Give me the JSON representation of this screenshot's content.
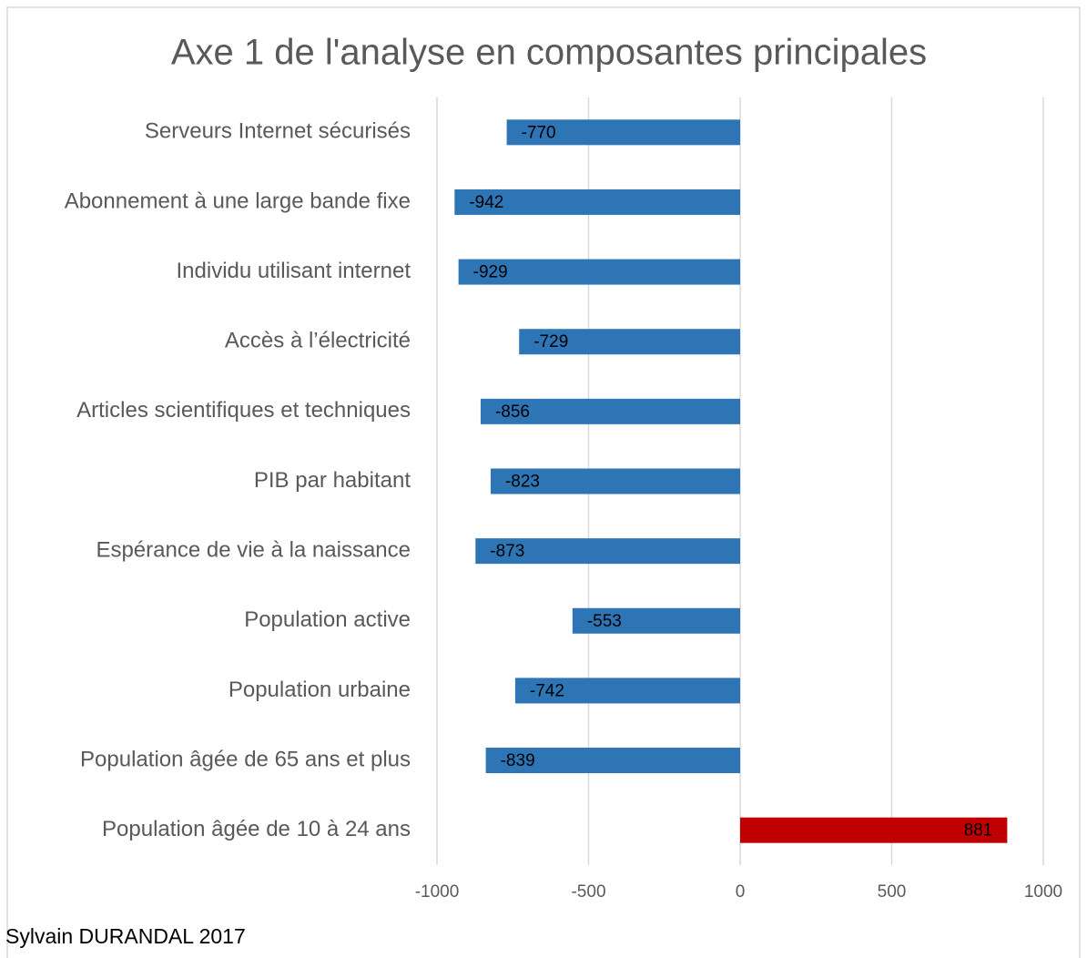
{
  "chart_data": {
    "type": "bar",
    "orientation": "horizontal",
    "title": "Axe 1 de l'analyse en composantes principales",
    "categories": [
      "Serveurs Internet sécurisés",
      "Abonnement à une large bande fixe",
      "Individu utilisant internet",
      "Accès à l’électricité",
      "Articles scientifiques et techniques",
      "PIB par habitant",
      "Espérance de vie à la naissance",
      "Population active",
      "Population urbaine",
      "Population âgée de 65 ans et plus",
      "Population âgée de 10 à 24 ans"
    ],
    "values": [
      -770,
      -942,
      -929,
      -729,
      -856,
      -823,
      -873,
      -553,
      -742,
      -839,
      881
    ],
    "colors": [
      "#2e75b6",
      "#2e75b6",
      "#2e75b6",
      "#2e75b6",
      "#2e75b6",
      "#2e75b6",
      "#2e75b6",
      "#2e75b6",
      "#2e75b6",
      "#2e75b6",
      "#c00000"
    ],
    "xlim": [
      -1000,
      1000
    ],
    "xticks": [
      -1000,
      -500,
      0,
      500,
      1000
    ],
    "grid": true,
    "caption": "Sylvain DURANDAL 2017"
  }
}
